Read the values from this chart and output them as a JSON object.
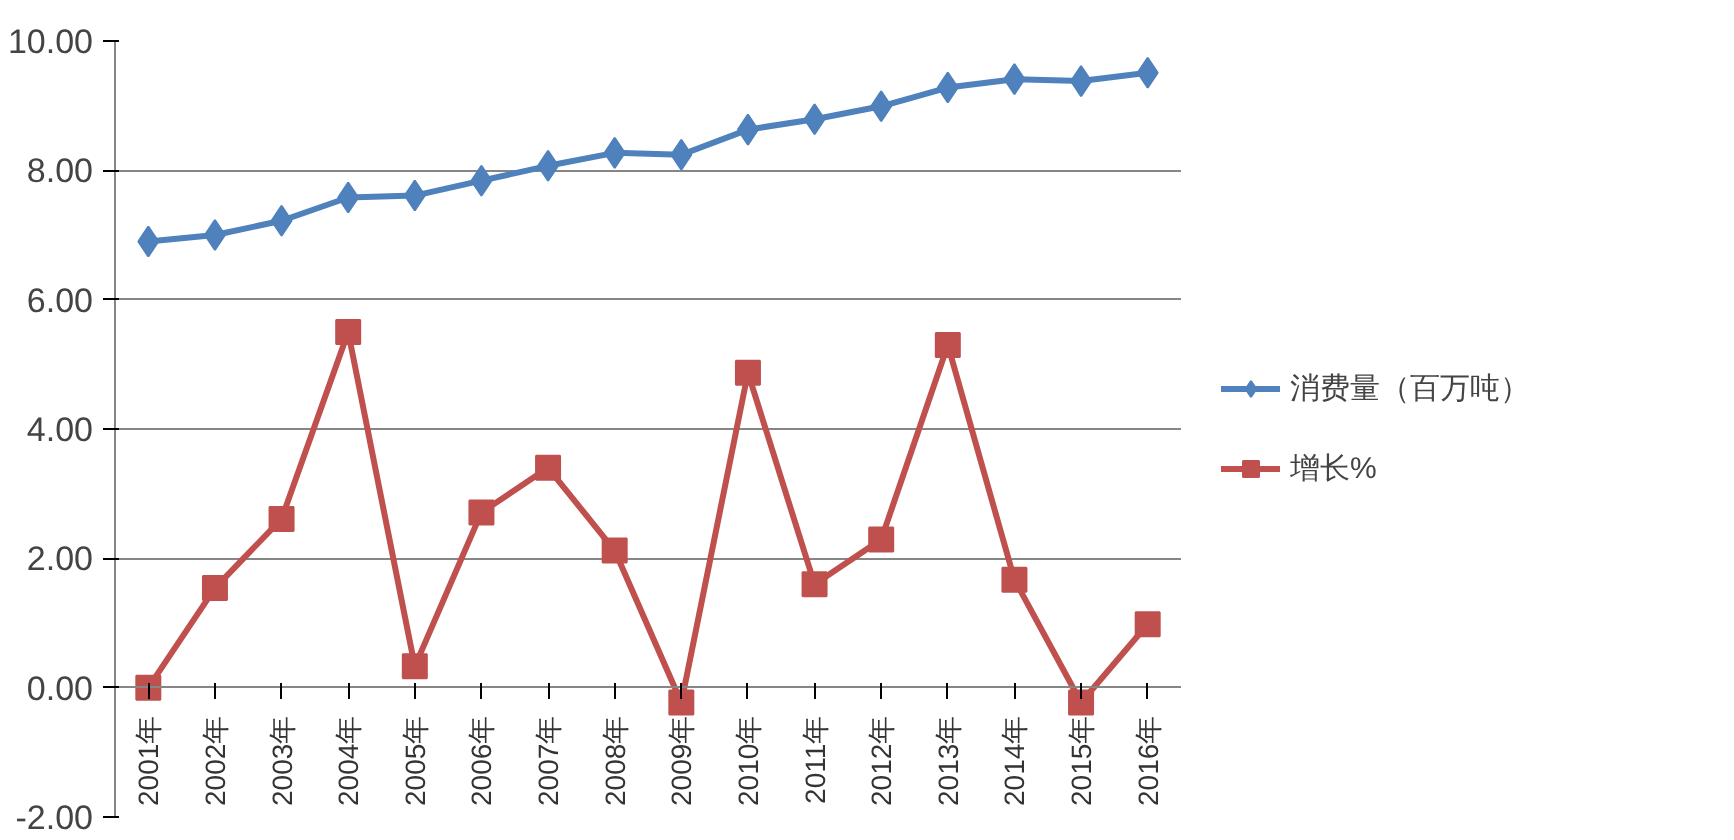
{
  "chart_data": {
    "type": "line",
    "categories": [
      "2001年",
      "2002年",
      "2003年",
      "2004年",
      "2005年",
      "2006年",
      "2007年",
      "2008年",
      "2009年",
      "2010年",
      "2011年",
      "2012年",
      "2013年",
      "2014年",
      "2015年",
      "2016年"
    ],
    "series": [
      {
        "name": "消费量（百万吨）",
        "color": "#4f81bd",
        "marker": "diamond",
        "values": [
          6.9,
          7.0,
          7.22,
          7.58,
          7.61,
          7.84,
          8.07,
          8.27,
          8.24,
          8.63,
          8.79,
          8.99,
          9.28,
          9.41,
          9.38,
          9.51
        ]
      },
      {
        "name": "增长%",
        "color": "#c0504d",
        "marker": "square",
        "values": [
          0.0,
          1.54,
          2.61,
          5.5,
          0.33,
          2.71,
          3.4,
          2.12,
          -0.23,
          4.87,
          1.6,
          2.29,
          5.3,
          1.67,
          -0.23,
          0.98
        ]
      }
    ],
    "ylim": [
      -2,
      10
    ],
    "yticks": [
      {
        "value": -2,
        "label": "-2.00"
      },
      {
        "value": 0,
        "label": "0.00"
      },
      {
        "value": 2,
        "label": "2.00"
      },
      {
        "value": 4,
        "label": "4.00"
      },
      {
        "value": 6,
        "label": "6.00"
      },
      {
        "value": 8,
        "label": "8.00"
      },
      {
        "value": 10,
        "label": "10.00"
      }
    ],
    "grid": "y",
    "legend": "right",
    "line_style": "solid"
  }
}
